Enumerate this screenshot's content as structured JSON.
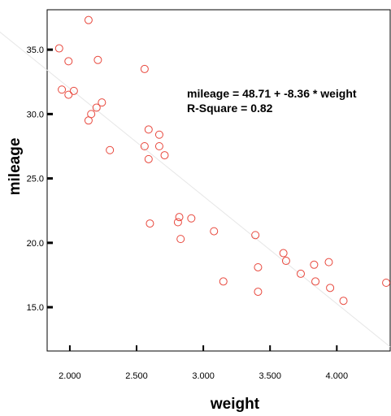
{
  "chart_data": {
    "type": "scatter",
    "xlabel": "weight",
    "ylabel": "mileage",
    "xlim": [
      1.83,
      4.4
    ],
    "ylim": [
      11.6,
      38.1
    ],
    "x_ticks": [
      2.0,
      2.5,
      3.0,
      3.5,
      4.0
    ],
    "x_tick_labels": [
      "2.000",
      "2.500",
      "3.000",
      "3.500",
      "4.000"
    ],
    "y_ticks": [
      15.0,
      20.0,
      25.0,
      30.0,
      35.0
    ],
    "y_tick_labels": [
      "15.0",
      "20.0",
      "25.0",
      "30.0",
      "35.0"
    ],
    "grid": false,
    "legend": "none",
    "marker_color": "#e8473c",
    "fit_line_color": "#e6e6e6",
    "annotations": [
      "mileage = 48.71 + -8.36 * weight",
      "R-Square = 0.82"
    ],
    "fit_line": {
      "intercept": 48.71,
      "slope": -8.36
    },
    "points": [
      {
        "x": 1.92,
        "y": 35.1
      },
      {
        "x": 1.99,
        "y": 34.1
      },
      {
        "x": 2.14,
        "y": 37.3
      },
      {
        "x": 2.21,
        "y": 34.2
      },
      {
        "x": 1.94,
        "y": 31.9
      },
      {
        "x": 1.99,
        "y": 31.5
      },
      {
        "x": 2.03,
        "y": 31.8
      },
      {
        "x": 2.24,
        "y": 30.9
      },
      {
        "x": 2.2,
        "y": 30.5
      },
      {
        "x": 2.16,
        "y": 30.0
      },
      {
        "x": 2.14,
        "y": 29.5
      },
      {
        "x": 2.3,
        "y": 27.2
      },
      {
        "x": 2.56,
        "y": 33.5
      },
      {
        "x": 2.59,
        "y": 28.8
      },
      {
        "x": 2.67,
        "y": 28.4
      },
      {
        "x": 2.56,
        "y": 27.5
      },
      {
        "x": 2.67,
        "y": 27.5
      },
      {
        "x": 2.71,
        "y": 26.8
      },
      {
        "x": 2.59,
        "y": 26.5
      },
      {
        "x": 2.82,
        "y": 22.0
      },
      {
        "x": 2.81,
        "y": 21.6
      },
      {
        "x": 2.91,
        "y": 21.9
      },
      {
        "x": 2.6,
        "y": 21.5
      },
      {
        "x": 2.83,
        "y": 20.3
      },
      {
        "x": 3.08,
        "y": 20.9
      },
      {
        "x": 3.15,
        "y": 17.0
      },
      {
        "x": 3.39,
        "y": 20.6
      },
      {
        "x": 3.41,
        "y": 18.1
      },
      {
        "x": 3.41,
        "y": 16.2
      },
      {
        "x": 3.6,
        "y": 19.2
      },
      {
        "x": 3.62,
        "y": 18.6
      },
      {
        "x": 3.73,
        "y": 17.6
      },
      {
        "x": 3.83,
        "y": 18.3
      },
      {
        "x": 3.94,
        "y": 18.5
      },
      {
        "x": 3.84,
        "y": 17.0
      },
      {
        "x": 3.95,
        "y": 16.5
      },
      {
        "x": 4.05,
        "y": 15.5
      },
      {
        "x": 4.37,
        "y": 16.9
      }
    ]
  }
}
